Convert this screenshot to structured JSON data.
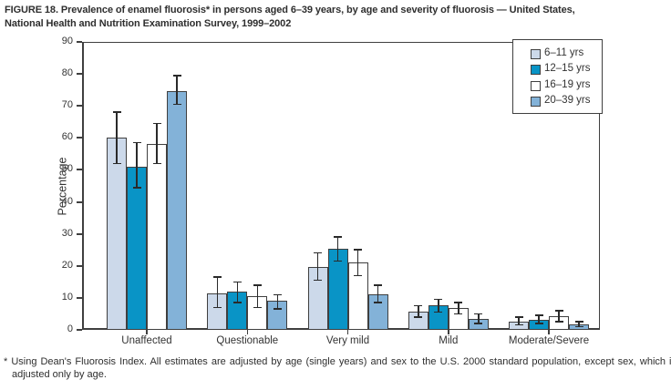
{
  "figure": {
    "title_lines": [
      "FIGURE 18. Prevalence of enamel fluorosis* in persons aged 6–39 years, by age and severity of fluorosis — United States,",
      "National Health and Nutrition Examination Survey, 1999–2002"
    ],
    "footnote": "* Using Dean's Fluorosis Index. All estimates are adjusted by age (single years) and sex to the U.S. 2000 standard population, except sex, which is adjusted only by age."
  },
  "chart_data": {
    "type": "bar",
    "title": "FIGURE 18. Prevalence of enamel fluorosis* in persons aged 6–39 years, by age and severity of fluorosis — United States, National Health and Nutrition Examination Survey, 1999–2002",
    "ylabel": "Percentage",
    "xlabel": "",
    "ylim": [
      0,
      90
    ],
    "yticks": [
      0,
      10,
      20,
      30,
      40,
      50,
      60,
      70,
      80,
      90
    ],
    "grid": false,
    "legend_position": "top-right",
    "error_bars": true,
    "categories": [
      "Unaffected",
      "Questionable",
      "Very mild",
      "Mild",
      "Moderate/Severe"
    ],
    "series": [
      {
        "name": "6–11 yrs",
        "color": "#ccd9ea",
        "values": [
          60,
          11.5,
          19.7,
          5.7,
          2.6
        ],
        "ci_low": [
          52,
          7,
          15.5,
          4,
          1.5
        ],
        "ci_high": [
          68,
          16.5,
          24,
          7.5,
          4
        ]
      },
      {
        "name": "12–15 yrs",
        "color": "#0994c6",
        "values": [
          51,
          12,
          25.3,
          7.8,
          3.2
        ],
        "ci_low": [
          44.5,
          8.5,
          21.5,
          5.5,
          2
        ],
        "ci_high": [
          58.5,
          15,
          29,
          9.5,
          4.5
        ]
      },
      {
        "name": "16–19 yrs",
        "color": "#ffffff",
        "values": [
          58,
          10.5,
          21,
          6.8,
          4.2
        ],
        "ci_low": [
          52,
          7,
          17,
          5,
          2.5
        ],
        "ci_high": [
          64.5,
          14,
          25,
          8.5,
          6
        ]
      },
      {
        "name": "20–39 yrs",
        "color": "#83b2d8",
        "values": [
          74.5,
          9,
          11,
          3.4,
          1.7
        ],
        "ci_low": [
          70.5,
          6.5,
          8.5,
          2,
          1
        ],
        "ci_high": [
          79.5,
          11,
          14,
          5,
          2.5
        ]
      }
    ],
    "colors": {
      "frame": "#3f3f3f",
      "error_bar": "#2a2a2a",
      "text": "#333333",
      "background": "#ffffff"
    }
  }
}
